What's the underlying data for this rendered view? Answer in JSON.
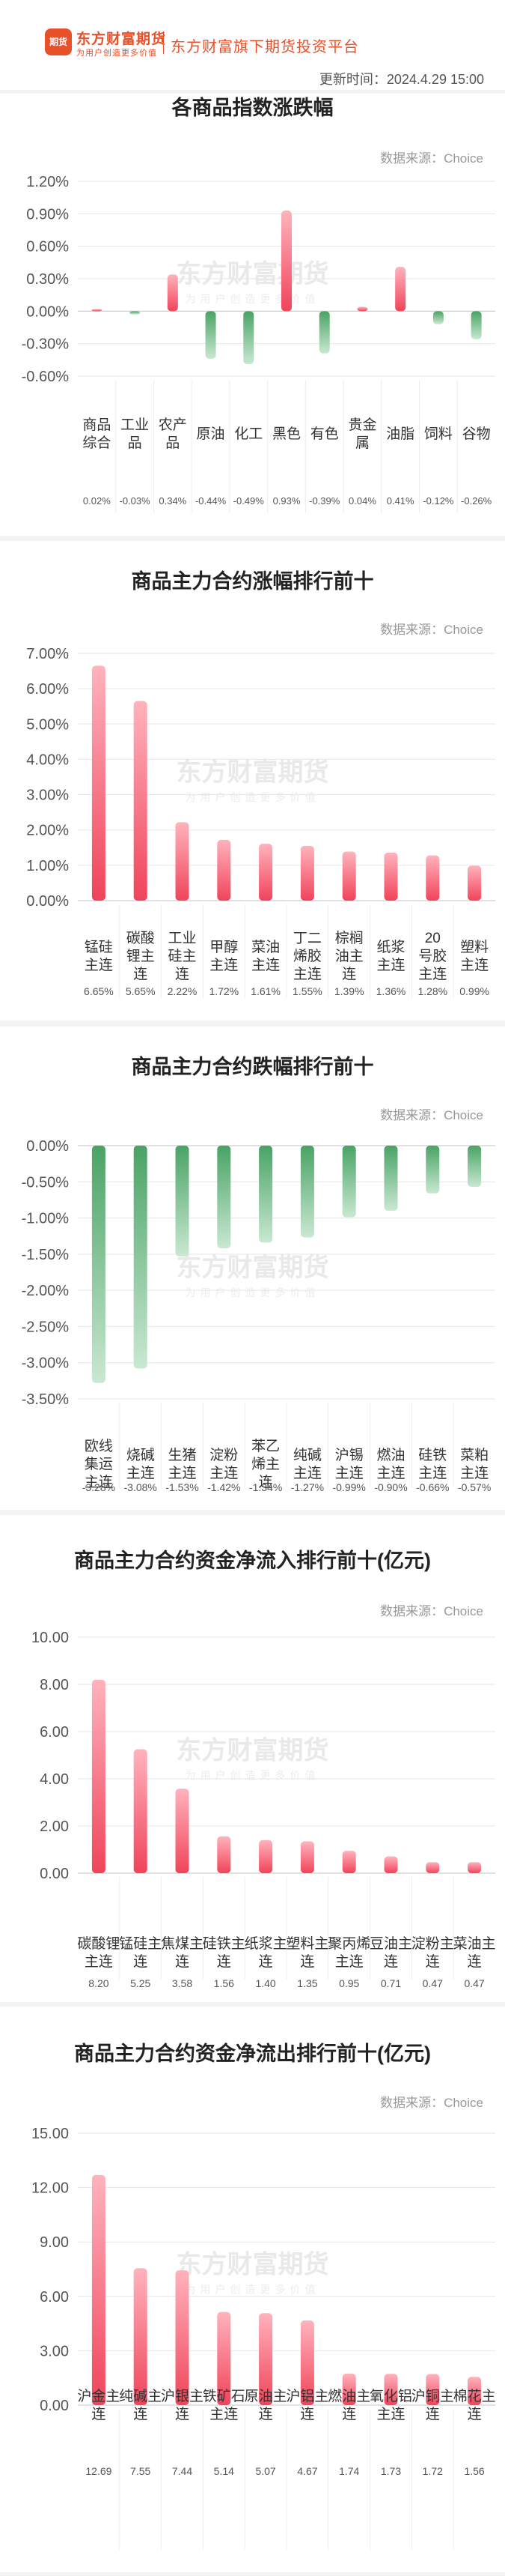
{
  "header": {
    "logo_icon_text": "期货",
    "logo_name": "东方财富期货",
    "logo_slogan": "为用户创造更多价值",
    "platform": "东方财富旗下期货投资平台",
    "update_time": "更新时间：2024.4.29 15:00"
  },
  "watermark": {
    "name": "东方财富期货",
    "slogan": "为用户创造更多价值"
  },
  "source_text": "数据来源：Choice",
  "colors": {
    "positive": "#f0445a",
    "negative": "#5aaf73",
    "background": "#f4f4f4"
  },
  "chart_data": [
    {
      "type": "bar",
      "title": "各商品指数涨跌幅",
      "categories": [
        "商品综合",
        "工业品",
        "农产品",
        "原油",
        "化工",
        "黑色",
        "有色",
        "贵金属",
        "油脂",
        "饲料",
        "谷物"
      ],
      "values": [
        0.02,
        -0.03,
        0.34,
        -0.44,
        -0.49,
        0.93,
        -0.39,
        0.04,
        0.41,
        -0.12,
        -0.26
      ],
      "value_labels": [
        "0.02%",
        "-0.03%",
        "0.34%",
        "-0.44%",
        "-0.49%",
        "0.93%",
        "-0.39%",
        "0.04%",
        "0.41%",
        "-0.12%",
        "-0.26%"
      ],
      "yticks": [
        "1.20%",
        "0.90%",
        "0.60%",
        "0.30%",
        "0.00%",
        "-0.30%",
        "-0.60%"
      ],
      "ylim": [
        -0.6,
        1.2
      ],
      "grid": true
    },
    {
      "type": "bar",
      "title": "商品主力合约涨幅排行前十",
      "categories": [
        "锰硅主连",
        "碳酸锂主连",
        "工业硅主连",
        "甲醇主连",
        "菜油主连",
        "丁二烯胶主连",
        "棕榈油主连",
        "纸浆主连",
        "20号胶主连",
        "塑料主连"
      ],
      "values": [
        6.65,
        5.65,
        2.22,
        1.72,
        1.61,
        1.55,
        1.39,
        1.36,
        1.28,
        0.99
      ],
      "value_labels": [
        "6.65%",
        "5.65%",
        "2.22%",
        "1.72%",
        "1.61%",
        "1.55%",
        "1.39%",
        "1.36%",
        "1.28%",
        "0.99%"
      ],
      "yticks": [
        "7.00%",
        "6.00%",
        "5.00%",
        "4.00%",
        "3.00%",
        "2.00%",
        "1.00%",
        "0.00%"
      ],
      "ylim": [
        0,
        7
      ],
      "grid": true
    },
    {
      "type": "bar",
      "title": "商品主力合约跌幅排行前十",
      "categories": [
        "欧线集运主连",
        "烧碱主连",
        "生猪主连",
        "淀粉主连",
        "苯乙烯主连",
        "纯碱主连",
        "沪锡主连",
        "燃油主连",
        "硅铁主连",
        "菜粕主连"
      ],
      "values": [
        -3.28,
        -3.08,
        -1.53,
        -1.42,
        -1.34,
        -1.27,
        -0.99,
        -0.9,
        -0.66,
        -0.57
      ],
      "value_labels": [
        "-3.28%",
        "-3.08%",
        "-1.53%",
        "-1.42%",
        "-1.34%",
        "-1.27%",
        "-0.99%",
        "-0.90%",
        "-0.66%",
        "-0.57%"
      ],
      "yticks": [
        "0.00%",
        "-0.50%",
        "-1.00%",
        "-1.50%",
        "-2.00%",
        "-2.50%",
        "-3.00%",
        "-3.50%"
      ],
      "ylim": [
        -3.5,
        0
      ],
      "grid": true
    },
    {
      "type": "bar",
      "title": "商品主力合约资金净流入排行前十(亿元)",
      "categories": [
        "碳酸锂主连",
        "锰硅主连",
        "焦煤主连",
        "硅铁主连",
        "纸浆主连",
        "塑料主连",
        "聚丙烯主连",
        "豆油主连",
        "淀粉主连",
        "菜油主连"
      ],
      "values": [
        8.2,
        5.25,
        3.58,
        1.56,
        1.4,
        1.35,
        0.95,
        0.71,
        0.47,
        0.47
      ],
      "value_labels": [
        "8.20",
        "5.25",
        "3.58",
        "1.56",
        "1.40",
        "1.35",
        "0.95",
        "0.71",
        "0.47",
        "0.47"
      ],
      "yticks": [
        "10.00",
        "8.00",
        "6.00",
        "4.00",
        "2.00",
        "0.00"
      ],
      "ylim": [
        0,
        10
      ],
      "grid": true
    },
    {
      "type": "bar",
      "title": "商品主力合约资金净流出排行前十(亿元)",
      "categories": [
        "沪金主连",
        "纯碱主连",
        "沪银主连",
        "铁矿石主连",
        "原油主连",
        "沪铝主连",
        "燃油主连",
        "氧化铝主连",
        "沪铜主连",
        "棉花主连"
      ],
      "values": [
        12.69,
        7.55,
        7.44,
        5.14,
        5.07,
        4.67,
        1.74,
        1.73,
        1.72,
        1.56
      ],
      "value_labels": [
        "12.69",
        "7.55",
        "7.44",
        "5.14",
        "5.07",
        "4.67",
        "1.74",
        "1.73",
        "1.72",
        "1.56"
      ],
      "yticks": [
        "15.00",
        "12.00",
        "9.00",
        "6.00",
        "3.00",
        "0.00"
      ],
      "ylim": [
        0,
        15
      ],
      "grid": true
    }
  ]
}
